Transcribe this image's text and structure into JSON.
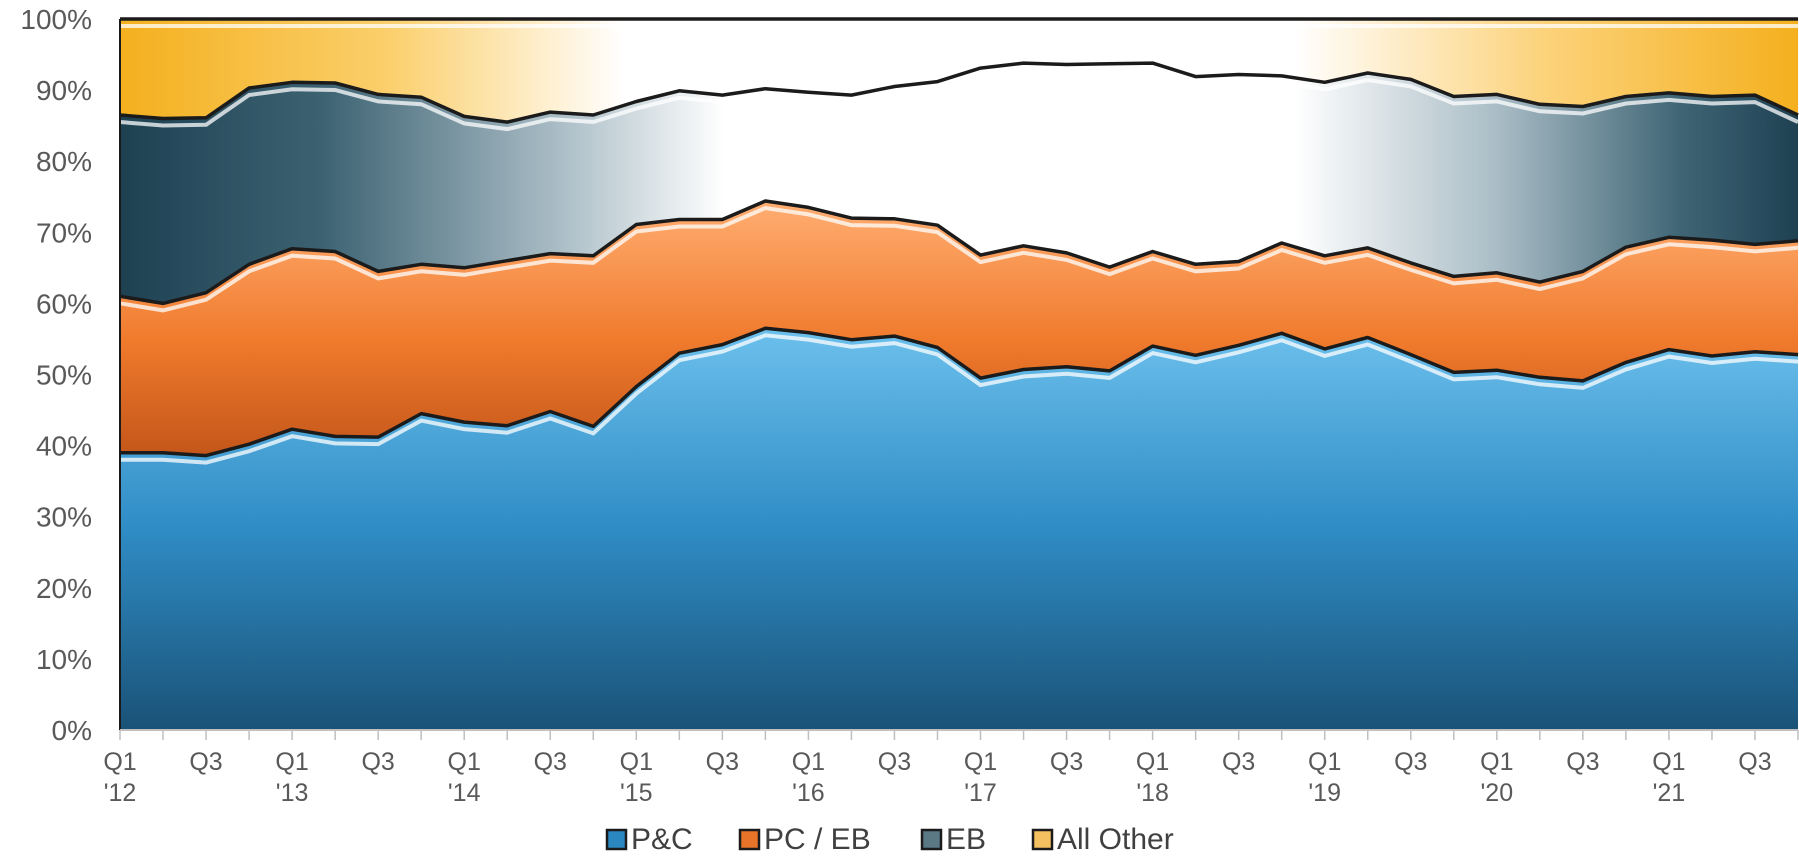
{
  "chart_data": {
    "type": "area",
    "stacked": "percent",
    "x_ticks": [
      [
        "Q1",
        "'12"
      ],
      [
        "",
        ""
      ],
      [
        "Q3",
        ""
      ],
      [
        "",
        ""
      ],
      [
        "Q1",
        "'13"
      ],
      [
        "",
        ""
      ],
      [
        "Q3",
        ""
      ],
      [
        "",
        ""
      ],
      [
        "Q1",
        "'14"
      ],
      [
        "",
        ""
      ],
      [
        "Q3",
        ""
      ],
      [
        "",
        ""
      ],
      [
        "Q1",
        "'15"
      ],
      [
        "",
        ""
      ],
      [
        "Q3",
        ""
      ],
      [
        "",
        ""
      ],
      [
        "Q1",
        "'16"
      ],
      [
        "",
        ""
      ],
      [
        "Q3",
        ""
      ],
      [
        "",
        ""
      ],
      [
        "Q1",
        "'17"
      ],
      [
        "",
        ""
      ],
      [
        "Q3",
        ""
      ],
      [
        "",
        ""
      ],
      [
        "Q1",
        "'18"
      ],
      [
        "",
        ""
      ],
      [
        "Q3",
        ""
      ],
      [
        "",
        ""
      ],
      [
        "Q1",
        "'19"
      ],
      [
        "",
        ""
      ],
      [
        "Q3",
        ""
      ],
      [
        "",
        ""
      ],
      [
        "Q1",
        "'20"
      ],
      [
        "",
        ""
      ],
      [
        "Q3",
        ""
      ],
      [
        "",
        ""
      ],
      [
        "Q1",
        "'21"
      ],
      [
        "",
        ""
      ],
      [
        "Q3",
        ""
      ],
      [
        "",
        ""
      ]
    ],
    "y_tick_labels": [
      "0%",
      "10%",
      "20%",
      "30%",
      "40%",
      "50%",
      "60%",
      "70%",
      "80%",
      "90%",
      "100%"
    ],
    "ylim": [
      0,
      100
    ],
    "legend_position": "bottom",
    "series": [
      {
        "name": "P&C",
        "color": "#2a87c0",
        "values": [
          39,
          39,
          38.6,
          40.2,
          42.3,
          41.3,
          41.2,
          44.5,
          43.3,
          42.8,
          44.8,
          42.7,
          48.3,
          53,
          54.2,
          56.5,
          55.9,
          54.9,
          55.4,
          53.8,
          49.5,
          50.7,
          51.1,
          50.5,
          54,
          52.7,
          54.1,
          55.8,
          53.6,
          55.2,
          52.8,
          50.3,
          50.6,
          49.6,
          49.1,
          51.7,
          53.5,
          52.6,
          53.2,
          52.8
        ]
      },
      {
        "name": "PC / EB",
        "color": "#e8742a",
        "values": [
          22,
          21,
          22.9,
          25.3,
          25.4,
          26,
          23.3,
          21,
          21.7,
          23.2,
          22.2,
          24,
          22.8,
          18.8,
          17.6,
          17.9,
          17.6,
          17.1,
          16.5,
          17.2,
          17.3,
          17.4,
          16,
          14.6,
          13.3,
          12.8,
          11.8,
          12.7,
          13.1,
          12.6,
          12.9,
          13.5,
          13.7,
          13.4,
          15.4,
          16.2,
          15.8,
          16.3,
          15.1,
          16
        ]
      },
      {
        "name": "EB",
        "color": "#7a95a4",
        "values": [
          25.5,
          26,
          24.6,
          24.8,
          23.4,
          23.7,
          24.9,
          23.5,
          21.3,
          19.5,
          19.9,
          19.8,
          17.3,
          18.1,
          17.5,
          15.8,
          16.2,
          17.3,
          18.6,
          20.2,
          26.3,
          25.7,
          26.5,
          28.6,
          26.5,
          26.4,
          26.3,
          23.5,
          24.4,
          24.6,
          25.8,
          25.3,
          25.1,
          25,
          23.2,
          21.2,
          20.3,
          20.2,
          21,
          17.7
        ]
      },
      {
        "name": "All Other",
        "color": "#f5b82e",
        "values": [
          13.5,
          14,
          13.9,
          9.7,
          8.9,
          9,
          10.6,
          11,
          13.7,
          14.5,
          13.1,
          13.5,
          11.6,
          10.1,
          10.7,
          9.8,
          10.3,
          10.7,
          9.5,
          8.8,
          6.9,
          6.2,
          6.4,
          6.3,
          6.2,
          8.1,
          7.8,
          8,
          8.9,
          7.6,
          8.5,
          10.9,
          10.6,
          12,
          12.3,
          10.9,
          10.4,
          10.9,
          10.7,
          13.5
        ]
      }
    ]
  }
}
